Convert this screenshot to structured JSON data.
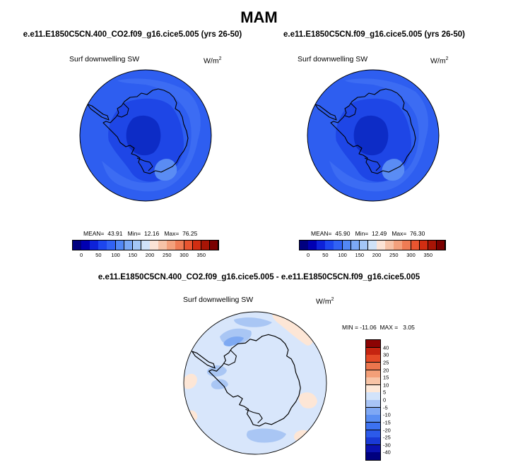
{
  "page": {
    "title": "MAM"
  },
  "colors": {
    "abs_palette": [
      "#00007f",
      "#0000b2",
      "#0d22d8",
      "#1d46ee",
      "#3162f4",
      "#5287f5",
      "#7ba8f5",
      "#a3c6f6",
      "#cfe2f8",
      "#fbe3d6",
      "#f6c2a7",
      "#f3a07c",
      "#ef7b54",
      "#e95530",
      "#d12e12",
      "#a81506",
      "#7a0000"
    ],
    "diff_palette": [
      "#00007f",
      "#0b12b0",
      "#1a3ad6",
      "#2c5aea",
      "#3d72f0",
      "#5a8ef2",
      "#7fa8f4",
      "#a8c4f6",
      "#d2e3fa",
      "#fde8d8",
      "#f8c4a6",
      "#f39f78",
      "#ec764d",
      "#e44a27",
      "#c52410",
      "#8c0303"
    ]
  },
  "panels": [
    {
      "case": "e.e11.E1850C5CN.400_CO2.f09_g16.cice5.005 (yrs 26-50)",
      "variable": "Surf downwelling SW",
      "units_base": "W/m",
      "units_exp": "2",
      "stats": "MEAN=  43.91   Min=  12.16   Max=  76.25",
      "colorbar_labels": [
        "0",
        "50",
        "100",
        "150",
        "200",
        "250",
        "300",
        "350"
      ]
    },
    {
      "case": "e.e11.E1850C5CN.f09_g16.cice5.005 (yrs 26-50)",
      "variable": "Surf downwelling SW",
      "units_base": "W/m",
      "units_exp": "2",
      "stats": "MEAN=  45.90   Min=  12.49   Max=  76.30",
      "colorbar_labels": [
        "0",
        "50",
        "100",
        "150",
        "200",
        "250",
        "300",
        "350"
      ]
    }
  ],
  "difference": {
    "case": "e.e11.E1850C5CN.400_CO2.f09_g16.cice5.005 - e.e11.E1850C5CN.f09_g16.cice5.005",
    "variable": "Surf downwelling SW",
    "units_base": "W/m",
    "units_exp": "2",
    "stats": "MIN = -11.06  MAX =   3.05",
    "colorbar_labels": [
      "40",
      "30",
      "25",
      "20",
      "15",
      "10",
      "5",
      "0",
      "-5",
      "-10",
      "-15",
      "-20",
      "-25",
      "-30",
      "-40"
    ]
  }
}
